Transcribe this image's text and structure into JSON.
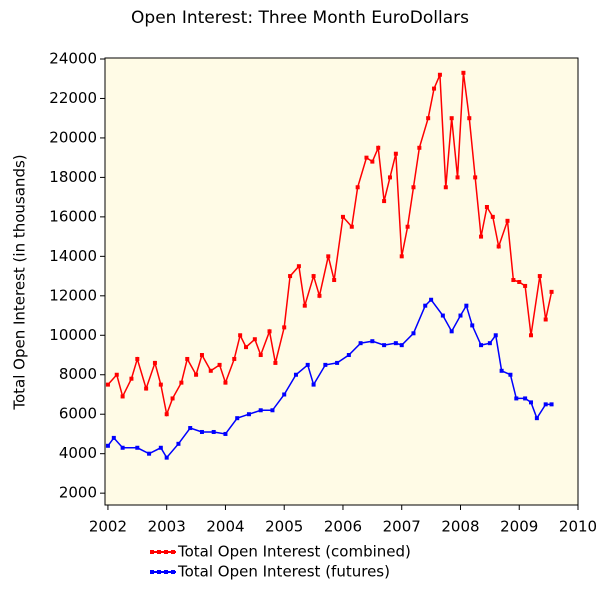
{
  "chart_data": {
    "type": "line",
    "title": "Open Interest: Three Month EuroDollars",
    "y_label": "Total Open Interest (in thousands)",
    "xlim": [
      2001.95,
      2010
    ],
    "ylim": [
      1400,
      24050
    ],
    "xticks": [
      2002,
      2003,
      2004,
      2005,
      2006,
      2007,
      2008,
      2009,
      2010
    ],
    "yticks": [
      2000,
      4000,
      6000,
      8000,
      10000,
      12000,
      14000,
      16000,
      18000,
      20000,
      22000,
      24000
    ],
    "grid": false,
    "background": "#fffbe6",
    "series": [
      {
        "name": "Total Open Interest (combined)",
        "color": "#ff0000",
        "x": [
          2002.0,
          2002.15,
          2002.25,
          2002.4,
          2002.5,
          2002.65,
          2002.8,
          2002.9,
          2003.0,
          2003.1,
          2003.25,
          2003.35,
          2003.5,
          2003.6,
          2003.75,
          2003.9,
          2004.0,
          2004.15,
          2004.25,
          2004.35,
          2004.5,
          2004.6,
          2004.75,
          2004.85,
          2005.0,
          2005.1,
          2005.25,
          2005.35,
          2005.5,
          2005.6,
          2005.75,
          2005.85,
          2006.0,
          2006.15,
          2006.25,
          2006.4,
          2006.5,
          2006.6,
          2006.7,
          2006.8,
          2006.9,
          2007.0,
          2007.1,
          2007.2,
          2007.3,
          2007.45,
          2007.55,
          2007.65,
          2007.75,
          2007.85,
          2007.95,
          2008.05,
          2008.15,
          2008.25,
          2008.35,
          2008.45,
          2008.55,
          2008.65,
          2008.8,
          2008.9,
          2009.0,
          2009.1,
          2009.2,
          2009.35,
          2009.45,
          2009.55
        ],
        "values": [
          7500,
          8000,
          6900,
          7800,
          8800,
          7300,
          8600,
          7500,
          6000,
          6800,
          7600,
          8800,
          8000,
          9000,
          8200,
          8500,
          7600,
          8800,
          10000,
          9400,
          9800,
          9000,
          10200,
          8600,
          10400,
          13000,
          13500,
          11500,
          13000,
          12000,
          14000,
          12800,
          16000,
          15500,
          17500,
          19000,
          18800,
          19500,
          16800,
          18000,
          19200,
          14000,
          15500,
          17500,
          19500,
          21000,
          22500,
          23200,
          17500,
          21000,
          18000,
          23300,
          21000,
          18000,
          15000,
          16500,
          16000,
          14500,
          15800,
          12800,
          12700,
          12500,
          10000,
          13000,
          10800,
          12200
        ]
      },
      {
        "name": "Total Open Interest (futures)",
        "color": "#0000ff",
        "x": [
          2002.0,
          2002.1,
          2002.25,
          2002.5,
          2002.7,
          2002.9,
          2003.0,
          2003.2,
          2003.4,
          2003.6,
          2003.8,
          2004.0,
          2004.2,
          2004.4,
          2004.6,
          2004.8,
          2005.0,
          2005.2,
          2005.4,
          2005.5,
          2005.7,
          2005.9,
          2006.1,
          2006.3,
          2006.5,
          2006.7,
          2006.9,
          2007.0,
          2007.2,
          2007.4,
          2007.5,
          2007.7,
          2007.85,
          2008.0,
          2008.1,
          2008.2,
          2008.35,
          2008.5,
          2008.6,
          2008.7,
          2008.85,
          2008.95,
          2009.1,
          2009.2,
          2009.3,
          2009.45,
          2009.55
        ],
        "values": [
          4400,
          4800,
          4300,
          4300,
          4000,
          4300,
          3800,
          4500,
          5300,
          5100,
          5100,
          5000,
          5800,
          6000,
          6200,
          6200,
          7000,
          8000,
          8500,
          7500,
          8500,
          8600,
          9000,
          9600,
          9700,
          9500,
          9600,
          9500,
          10100,
          11500,
          11800,
          11000,
          10200,
          11000,
          11500,
          10500,
          9500,
          9600,
          10000,
          8200,
          8000,
          6800,
          6800,
          6600,
          5800,
          6500,
          6500
        ]
      }
    ]
  }
}
